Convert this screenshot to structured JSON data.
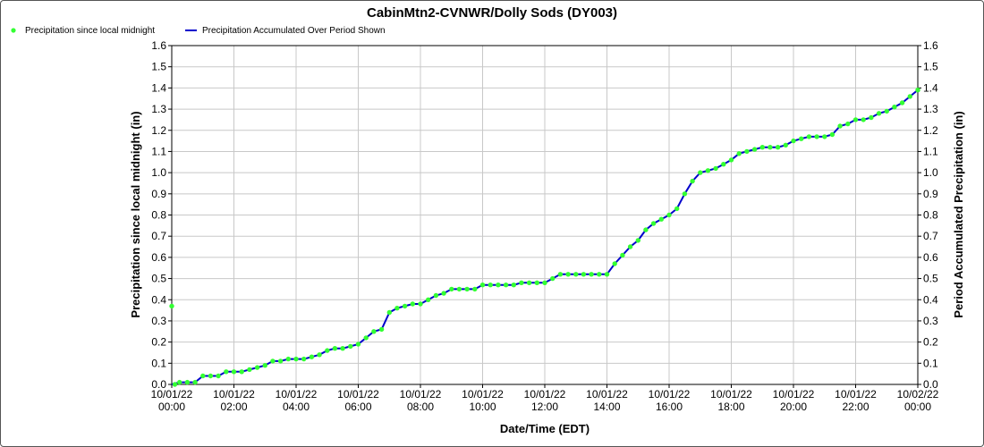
{
  "chart_data": {
    "type": "line",
    "title": "CabinMtn2-CVNWR/Dolly Sods (DY003)",
    "xlabel": "Date/Time (EDT)",
    "ylabel_left": "Precipitation since local midnight (in)",
    "ylabel_right": "Period Accumulated Precipitation (in)",
    "ylim": [
      0,
      1.6
    ],
    "xlim_hours": [
      0,
      24
    ],
    "y_ticks": [
      "0.0",
      "0.1",
      "0.2",
      "0.3",
      "0.4",
      "0.5",
      "0.6",
      "0.7",
      "0.8",
      "0.9",
      "1.0",
      "1.1",
      "1.2",
      "1.3",
      "1.4",
      "1.5",
      "1.6"
    ],
    "x_ticks": [
      {
        "date": "10/01/22",
        "time": "00:00"
      },
      {
        "date": "10/01/22",
        "time": "02:00"
      },
      {
        "date": "10/01/22",
        "time": "04:00"
      },
      {
        "date": "10/01/22",
        "time": "06:00"
      },
      {
        "date": "10/01/22",
        "time": "08:00"
      },
      {
        "date": "10/01/22",
        "time": "10:00"
      },
      {
        "date": "10/01/22",
        "time": "12:00"
      },
      {
        "date": "10/01/22",
        "time": "14:00"
      },
      {
        "date": "10/01/22",
        "time": "16:00"
      },
      {
        "date": "10/01/22",
        "time": "18:00"
      },
      {
        "date": "10/01/22",
        "time": "20:00"
      },
      {
        "date": "10/01/22",
        "time": "22:00"
      },
      {
        "date": "10/02/22",
        "time": "00:00"
      }
    ],
    "grid": true,
    "legend": "top-left",
    "series": [
      {
        "name": "Precipitation since local midnight",
        "kind": "scatter",
        "color": "#33ff33",
        "points": [
          [
            0.0,
            0.37
          ],
          [
            0.1,
            0.0
          ],
          [
            0.25,
            0.01
          ],
          [
            0.5,
            0.01
          ],
          [
            0.75,
            0.01
          ],
          [
            1.0,
            0.04
          ],
          [
            1.25,
            0.04
          ],
          [
            1.5,
            0.04
          ],
          [
            1.75,
            0.06
          ],
          [
            2.0,
            0.06
          ],
          [
            2.25,
            0.06
          ],
          [
            2.5,
            0.07
          ],
          [
            2.75,
            0.08
          ],
          [
            3.0,
            0.09
          ],
          [
            3.25,
            0.11
          ],
          [
            3.5,
            0.11
          ],
          [
            3.75,
            0.12
          ],
          [
            4.0,
            0.12
          ],
          [
            4.25,
            0.12
          ],
          [
            4.5,
            0.13
          ],
          [
            4.75,
            0.14
          ],
          [
            5.0,
            0.16
          ],
          [
            5.25,
            0.17
          ],
          [
            5.5,
            0.17
          ],
          [
            5.75,
            0.18
          ],
          [
            6.0,
            0.19
          ],
          [
            6.25,
            0.22
          ],
          [
            6.5,
            0.25
          ],
          [
            6.75,
            0.26
          ],
          [
            7.0,
            0.34
          ],
          [
            7.25,
            0.36
          ],
          [
            7.5,
            0.37
          ],
          [
            7.75,
            0.38
          ],
          [
            8.0,
            0.38
          ],
          [
            8.25,
            0.4
          ],
          [
            8.5,
            0.42
          ],
          [
            8.75,
            0.43
          ],
          [
            9.0,
            0.45
          ],
          [
            9.25,
            0.45
          ],
          [
            9.5,
            0.45
          ],
          [
            9.75,
            0.45
          ],
          [
            10.0,
            0.47
          ],
          [
            10.25,
            0.47
          ],
          [
            10.5,
            0.47
          ],
          [
            10.75,
            0.47
          ],
          [
            11.0,
            0.47
          ],
          [
            11.25,
            0.48
          ],
          [
            11.5,
            0.48
          ],
          [
            11.75,
            0.48
          ],
          [
            12.0,
            0.48
          ],
          [
            12.25,
            0.5
          ],
          [
            12.5,
            0.52
          ],
          [
            12.75,
            0.52
          ],
          [
            13.0,
            0.52
          ],
          [
            13.25,
            0.52
          ],
          [
            13.5,
            0.52
          ],
          [
            13.75,
            0.52
          ],
          [
            14.0,
            0.52
          ],
          [
            14.25,
            0.57
          ],
          [
            14.5,
            0.61
          ],
          [
            14.75,
            0.65
          ],
          [
            15.0,
            0.68
          ],
          [
            15.25,
            0.73
          ],
          [
            15.5,
            0.76
          ],
          [
            15.75,
            0.78
          ],
          [
            16.0,
            0.8
          ],
          [
            16.25,
            0.83
          ],
          [
            16.5,
            0.9
          ],
          [
            16.75,
            0.96
          ],
          [
            17.0,
            1.0
          ],
          [
            17.25,
            1.01
          ],
          [
            17.5,
            1.02
          ],
          [
            17.75,
            1.04
          ],
          [
            18.0,
            1.06
          ],
          [
            18.25,
            1.09
          ],
          [
            18.5,
            1.1
          ],
          [
            18.75,
            1.11
          ],
          [
            19.0,
            1.12
          ],
          [
            19.25,
            1.12
          ],
          [
            19.5,
            1.12
          ],
          [
            19.75,
            1.13
          ],
          [
            20.0,
            1.15
          ],
          [
            20.25,
            1.16
          ],
          [
            20.5,
            1.17
          ],
          [
            20.75,
            1.17
          ],
          [
            21.0,
            1.17
          ],
          [
            21.25,
            1.18
          ],
          [
            21.5,
            1.22
          ],
          [
            21.75,
            1.23
          ],
          [
            22.0,
            1.25
          ],
          [
            22.25,
            1.25
          ],
          [
            22.5,
            1.26
          ],
          [
            22.75,
            1.28
          ],
          [
            23.0,
            1.29
          ],
          [
            23.25,
            1.31
          ],
          [
            23.5,
            1.33
          ],
          [
            23.75,
            1.36
          ],
          [
            24.0,
            1.39
          ]
        ]
      },
      {
        "name": "Precipitation Accumulated Over Period Shown",
        "kind": "line",
        "color": "#0000cc",
        "points": [
          [
            0.0,
            0.0
          ],
          [
            0.25,
            0.01
          ],
          [
            0.5,
            0.01
          ],
          [
            0.75,
            0.01
          ],
          [
            1.0,
            0.04
          ],
          [
            1.25,
            0.04
          ],
          [
            1.5,
            0.04
          ],
          [
            1.75,
            0.06
          ],
          [
            2.0,
            0.06
          ],
          [
            2.25,
            0.06
          ],
          [
            2.5,
            0.07
          ],
          [
            2.75,
            0.08
          ],
          [
            3.0,
            0.09
          ],
          [
            3.25,
            0.11
          ],
          [
            3.5,
            0.11
          ],
          [
            3.75,
            0.12
          ],
          [
            4.0,
            0.12
          ],
          [
            4.25,
            0.12
          ],
          [
            4.5,
            0.13
          ],
          [
            4.75,
            0.14
          ],
          [
            5.0,
            0.16
          ],
          [
            5.25,
            0.17
          ],
          [
            5.5,
            0.17
          ],
          [
            5.75,
            0.18
          ],
          [
            6.0,
            0.19
          ],
          [
            6.25,
            0.22
          ],
          [
            6.5,
            0.25
          ],
          [
            6.75,
            0.26
          ],
          [
            7.0,
            0.34
          ],
          [
            7.25,
            0.36
          ],
          [
            7.5,
            0.37
          ],
          [
            7.75,
            0.38
          ],
          [
            8.0,
            0.38
          ],
          [
            8.25,
            0.4
          ],
          [
            8.5,
            0.42
          ],
          [
            8.75,
            0.43
          ],
          [
            9.0,
            0.45
          ],
          [
            9.25,
            0.45
          ],
          [
            9.5,
            0.45
          ],
          [
            9.75,
            0.45
          ],
          [
            10.0,
            0.47
          ],
          [
            10.25,
            0.47
          ],
          [
            10.5,
            0.47
          ],
          [
            10.75,
            0.47
          ],
          [
            11.0,
            0.47
          ],
          [
            11.25,
            0.48
          ],
          [
            11.5,
            0.48
          ],
          [
            11.75,
            0.48
          ],
          [
            12.0,
            0.48
          ],
          [
            12.25,
            0.5
          ],
          [
            12.5,
            0.52
          ],
          [
            12.75,
            0.52
          ],
          [
            13.0,
            0.52
          ],
          [
            13.25,
            0.52
          ],
          [
            13.5,
            0.52
          ],
          [
            13.75,
            0.52
          ],
          [
            14.0,
            0.52
          ],
          [
            14.25,
            0.57
          ],
          [
            14.5,
            0.61
          ],
          [
            14.75,
            0.65
          ],
          [
            15.0,
            0.68
          ],
          [
            15.25,
            0.73
          ],
          [
            15.5,
            0.76
          ],
          [
            15.75,
            0.78
          ],
          [
            16.0,
            0.8
          ],
          [
            16.25,
            0.83
          ],
          [
            16.5,
            0.9
          ],
          [
            16.75,
            0.96
          ],
          [
            17.0,
            1.0
          ],
          [
            17.25,
            1.01
          ],
          [
            17.5,
            1.02
          ],
          [
            17.75,
            1.04
          ],
          [
            18.0,
            1.06
          ],
          [
            18.25,
            1.09
          ],
          [
            18.5,
            1.1
          ],
          [
            18.75,
            1.11
          ],
          [
            19.0,
            1.12
          ],
          [
            19.25,
            1.12
          ],
          [
            19.5,
            1.12
          ],
          [
            19.75,
            1.13
          ],
          [
            20.0,
            1.15
          ],
          [
            20.25,
            1.16
          ],
          [
            20.5,
            1.17
          ],
          [
            20.75,
            1.17
          ],
          [
            21.0,
            1.17
          ],
          [
            21.25,
            1.18
          ],
          [
            21.5,
            1.22
          ],
          [
            21.75,
            1.23
          ],
          [
            22.0,
            1.25
          ],
          [
            22.25,
            1.25
          ],
          [
            22.5,
            1.26
          ],
          [
            22.75,
            1.28
          ],
          [
            23.0,
            1.29
          ],
          [
            23.25,
            1.31
          ],
          [
            23.5,
            1.33
          ],
          [
            23.75,
            1.36
          ],
          [
            24.0,
            1.39
          ]
        ]
      }
    ]
  }
}
